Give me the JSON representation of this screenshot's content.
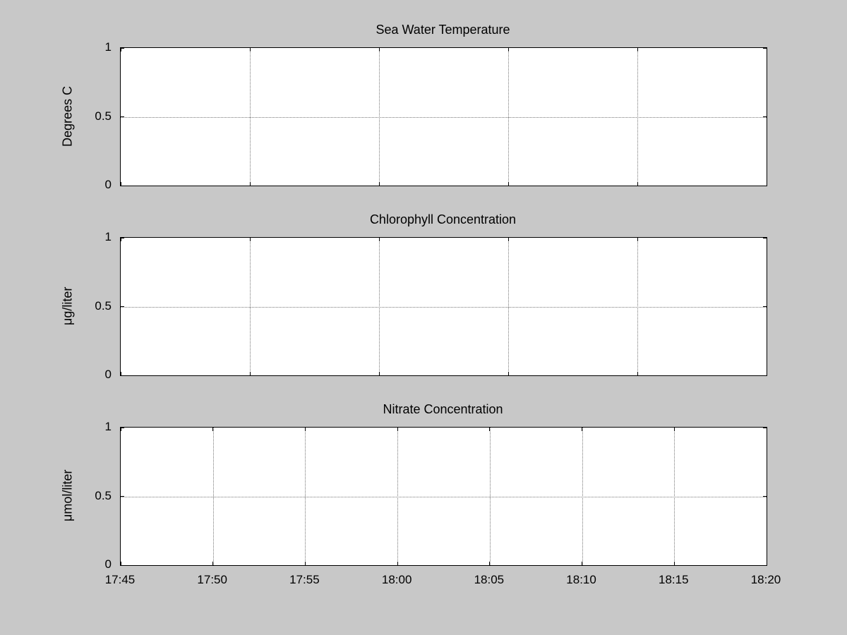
{
  "colors": {
    "figure_background": "#c8c8c8",
    "plot_background": "#ffffff",
    "axis": "#000000",
    "grid": "#777777"
  },
  "chart_data": [
    {
      "type": "line",
      "title": "Sea Water Temperature",
      "ylabel": "Degrees C",
      "ylim": [
        0,
        1
      ],
      "yticks": [
        0,
        0.5,
        1
      ],
      "ytick_labels": [
        "0",
        "0.5",
        "1"
      ],
      "xlim": [
        0,
        1
      ],
      "xticks": [
        0,
        0.2,
        0.4,
        0.6,
        0.8,
        1
      ],
      "xtick_labels": [],
      "grid": true,
      "series": []
    },
    {
      "type": "line",
      "title": "Chlorophyll Concentration",
      "ylabel": "μg/liter",
      "ylim": [
        0,
        1
      ],
      "yticks": [
        0,
        0.5,
        1
      ],
      "ytick_labels": [
        "0",
        "0.5",
        "1"
      ],
      "xlim": [
        0,
        1
      ],
      "xticks": [
        0,
        0.2,
        0.4,
        0.6,
        0.8,
        1
      ],
      "xtick_labels": [],
      "grid": true,
      "series": []
    },
    {
      "type": "line",
      "title": "Nitrate Concentration",
      "ylabel": "μmol/liter",
      "ylim": [
        0,
        1
      ],
      "yticks": [
        0,
        0.5,
        1
      ],
      "ytick_labels": [
        "0",
        "0.5",
        "1"
      ],
      "xlim": [
        0,
        35
      ],
      "xticks": [
        0,
        5,
        10,
        15,
        20,
        25,
        30,
        35
      ],
      "xtick_labels": [
        "17:45",
        "17:50",
        "17:55",
        "18:00",
        "18:05",
        "18:10",
        "18:15",
        "18:20"
      ],
      "grid": true,
      "series": []
    }
  ]
}
